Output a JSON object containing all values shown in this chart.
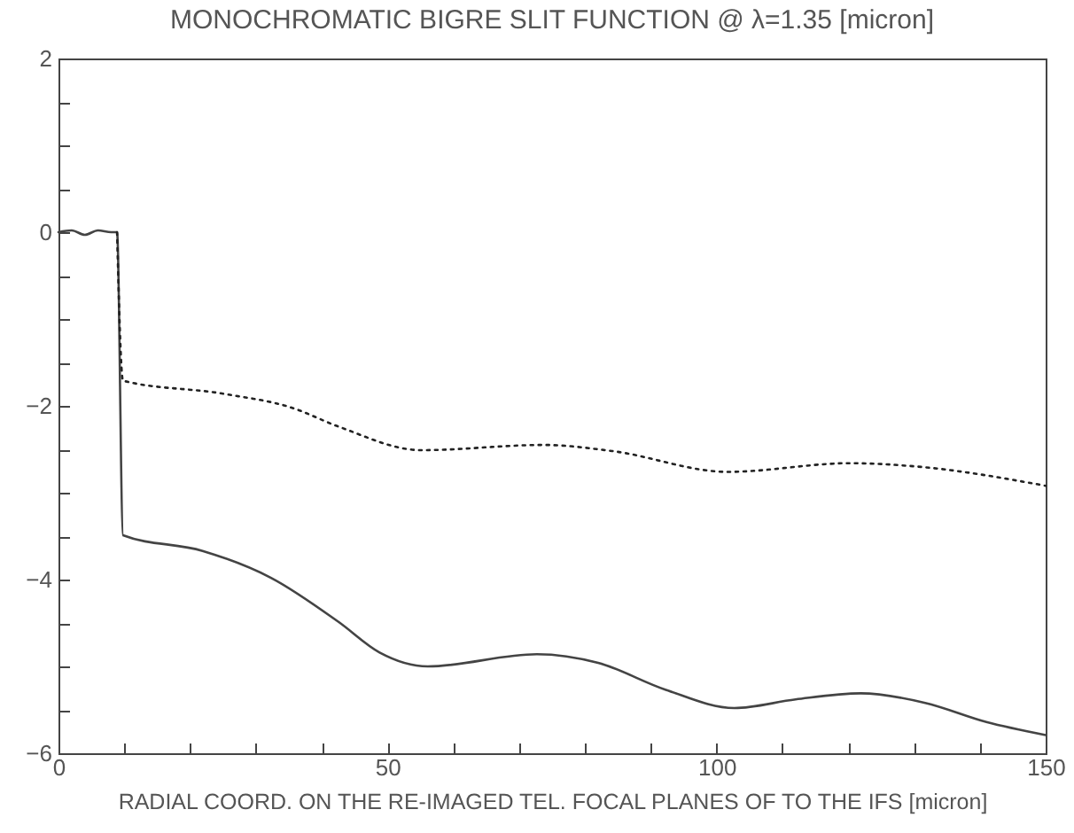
{
  "chart_data": {
    "type": "line",
    "title": "MONOCHROMATIC BIGRE SLIT FUNCTION @ λ=1.35 [micron]",
    "xlabel": "RADIAL COORD. ON THE RE-IMAGED TEL. FOCAL PLANES OF TO THE IFS [micron]",
    "xlim": [
      0,
      150
    ],
    "ylim": [
      -6,
      2
    ],
    "xticks": [
      0,
      {
        "value": 10,
        "label": null
      },
      {
        "value": 20,
        "label": null
      },
      {
        "value": 30,
        "label": null
      },
      {
        "value": 40,
        "label": null
      },
      50,
      {
        "value": 60,
        "label": null
      },
      {
        "value": 70,
        "label": null
      },
      {
        "value": 80,
        "label": null
      },
      {
        "value": 90,
        "label": null
      },
      100,
      {
        "value": 110,
        "label": null
      },
      {
        "value": 120,
        "label": null
      },
      {
        "value": 130,
        "label": null
      },
      {
        "value": 140,
        "label": null
      },
      150
    ],
    "yticks": [
      -6,
      {
        "value": -5.5,
        "label": null
      },
      {
        "value": -5,
        "label": null
      },
      {
        "value": -4.5,
        "label": null
      },
      -4,
      {
        "value": -3.5,
        "label": null
      },
      {
        "value": -3,
        "label": null
      },
      {
        "value": -2.5,
        "label": null
      },
      -2,
      {
        "value": -1.5,
        "label": null
      },
      {
        "value": -1,
        "label": null
      },
      {
        "value": -0.5,
        "label": null
      },
      0,
      {
        "value": 0.5,
        "label": null
      },
      {
        "value": 1,
        "label": null
      },
      {
        "value": 1.5,
        "label": null
      },
      2
    ],
    "grid": false,
    "series": [
      {
        "color": "#444444",
        "line_style": "solid",
        "x": [
          0,
          2,
          4,
          6,
          8,
          8.9,
          9.8,
          21.9,
          32.3,
          42.6,
          48.8,
          56.1,
          72.7,
          82.0,
          92.3,
          102.7,
          112.0,
          121.9,
          131.7,
          141.0,
          150
        ],
        "values": [
          0,
          0.02,
          -0.03,
          0.02,
          0,
          0,
          -3.49,
          -3.67,
          -3.98,
          -4.49,
          -4.84,
          -5.0,
          -4.86,
          -4.96,
          -5.27,
          -5.48,
          -5.38,
          -5.31,
          -5.42,
          -5.64,
          -5.79
        ]
      },
      {
        "color": "#222222",
        "line_style": "dotted",
        "x": [
          8.9,
          9.8,
          25.0,
          35.4,
          42.6,
          55.1,
          73.7,
          84.1,
          101.7,
          120.3,
          130.6,
          150
        ],
        "values": [
          0,
          -1.71,
          -1.86,
          -2.02,
          -2.24,
          -2.51,
          -2.45,
          -2.52,
          -2.76,
          -2.66,
          -2.7,
          -2.92
        ]
      }
    ]
  }
}
